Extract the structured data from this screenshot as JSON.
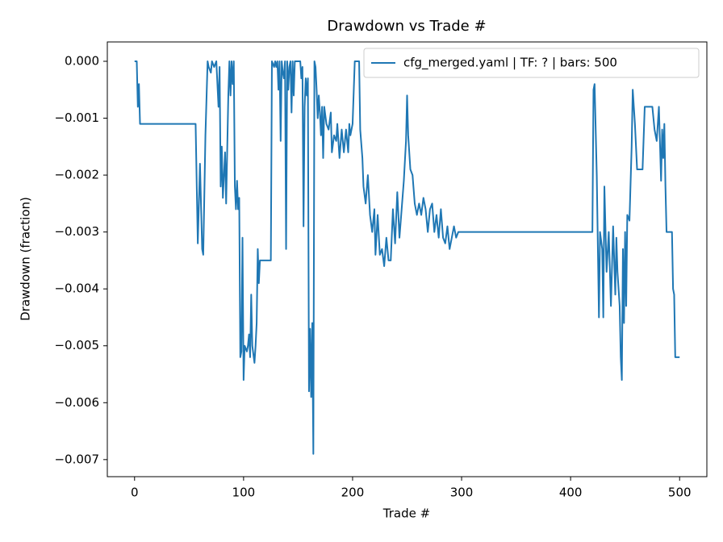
{
  "chart_data": {
    "type": "line",
    "title": "Drawdown vs Trade #",
    "x_label": "Trade #",
    "y_label": "Drawdown (fraction)",
    "x": [
      0,
      2,
      3,
      4,
      5,
      56,
      58,
      60,
      62,
      63,
      65,
      67,
      68,
      70,
      71,
      73,
      75,
      77,
      78,
      79,
      80,
      81,
      83,
      84,
      86,
      87,
      88,
      89,
      90,
      91,
      92,
      93,
      94,
      95,
      96,
      97,
      98,
      99,
      100,
      101,
      103,
      104,
      105,
      106,
      107,
      108,
      110,
      111,
      112,
      113,
      114,
      115,
      125,
      126,
      128,
      129,
      130,
      131,
      132,
      133,
      134,
      135,
      136,
      137,
      138,
      139,
      140,
      141,
      142,
      143,
      144,
      145,
      146,
      147,
      152,
      153,
      154,
      155,
      156,
      157,
      158,
      159,
      160,
      161,
      162,
      163,
      164,
      165,
      166,
      167,
      168,
      169,
      170,
      171,
      172,
      173,
      174,
      176,
      178,
      180,
      181,
      183,
      185,
      186,
      188,
      190,
      192,
      194,
      196,
      197,
      198,
      200,
      202,
      206,
      207,
      209,
      210,
      212,
      214,
      216,
      218,
      220,
      221,
      223,
      225,
      227,
      229,
      231,
      233,
      235,
      237,
      239,
      241,
      243,
      245,
      247,
      249,
      250,
      251,
      253,
      255,
      257,
      259,
      261,
      263,
      265,
      267,
      269,
      271,
      273,
      275,
      277,
      279,
      281,
      283,
      285,
      287,
      289,
      291,
      293,
      295,
      297,
      420,
      421,
      422,
      424,
      426,
      427,
      429,
      430,
      431,
      433,
      435,
      437,
      439,
      441,
      442,
      443,
      445,
      446,
      447,
      448,
      449,
      450,
      451,
      452,
      454,
      456,
      457,
      458,
      459,
      461,
      466,
      468,
      475,
      477,
      479,
      481,
      483,
      484,
      485,
      486,
      487,
      488,
      493,
      494,
      495,
      496,
      500
    ],
    "series": [
      {
        "name": "cfg_merged.yaml | TF: ? | bars: 500",
        "color": "#1f77b4",
        "values": [
          0,
          0,
          -0.0008,
          -0.0004,
          -0.0011,
          -0.0011,
          -0.0032,
          -0.0018,
          -0.0033,
          -0.0034,
          -0.0013,
          0,
          -0.0001,
          -0.0002,
          0,
          -0.0001,
          0,
          -0.0008,
          -0.0001,
          -0.0022,
          -0.0015,
          -0.0024,
          -0.0016,
          -0.0025,
          -0.0006,
          0,
          -0.0006,
          0,
          -0.0004,
          0,
          -0.0022,
          -0.0026,
          -0.0021,
          -0.0026,
          -0.0024,
          -0.0052,
          -0.0051,
          -0.0031,
          -0.0056,
          -0.005,
          -0.0051,
          -0.005,
          -0.0048,
          -0.0052,
          -0.0041,
          -0.005,
          -0.0053,
          -0.005,
          -0.0046,
          -0.0033,
          -0.0039,
          -0.0035,
          -0.0035,
          0,
          -0.0001,
          0,
          -0.0001,
          0,
          -0.0005,
          0,
          -0.0014,
          0,
          -0.0002,
          -0.0003,
          0,
          -0.0033,
          0,
          -0.0005,
          -0.0001,
          0,
          -0.0009,
          0,
          -0.0006,
          0,
          0,
          -0.0003,
          -0.0001,
          -0.0029,
          -0.0008,
          -0.0003,
          -0.0006,
          -0.0003,
          -0.0058,
          -0.0047,
          -0.0059,
          -0.0046,
          -0.0069,
          0,
          -0.0001,
          -0.0005,
          -0.001,
          -0.0006,
          -0.0009,
          -0.0013,
          -0.0008,
          -0.0017,
          -0.0008,
          -0.0011,
          -0.0012,
          -0.0009,
          -0.0016,
          -0.0013,
          -0.0014,
          -0.0011,
          -0.0017,
          -0.0012,
          -0.0016,
          -0.0012,
          -0.0016,
          -0.0011,
          -0.0013,
          -0.0011,
          0,
          0,
          -0.0012,
          -0.0017,
          -0.0022,
          -0.0025,
          -0.002,
          -0.0027,
          -0.003,
          -0.0026,
          -0.0034,
          -0.0027,
          -0.0034,
          -0.0033,
          -0.0036,
          -0.0031,
          -0.0035,
          -0.0035,
          -0.0026,
          -0.0032,
          -0.0023,
          -0.0031,
          -0.0026,
          -0.0021,
          -0.0014,
          -0.0006,
          -0.0013,
          -0.0019,
          -0.002,
          -0.0025,
          -0.0027,
          -0.0025,
          -0.0027,
          -0.0024,
          -0.0026,
          -0.003,
          -0.0026,
          -0.0025,
          -0.003,
          -0.0027,
          -0.0031,
          -0.0026,
          -0.0031,
          -0.0032,
          -0.0029,
          -0.0033,
          -0.0031,
          -0.0029,
          -0.0031,
          -0.003,
          -0.003,
          -0.0005,
          -0.0004,
          -0.002,
          -0.0045,
          -0.003,
          -0.0033,
          -0.0045,
          -0.0022,
          -0.0037,
          -0.003,
          -0.0043,
          -0.0029,
          -0.0041,
          -0.0031,
          -0.0037,
          -0.0043,
          -0.0052,
          -0.0056,
          -0.0033,
          -0.0046,
          -0.003,
          -0.0043,
          -0.0027,
          -0.0028,
          -0.0015,
          -0.0005,
          -0.0008,
          -0.0011,
          -0.0019,
          -0.0019,
          -0.0008,
          -0.0008,
          -0.0012,
          -0.0014,
          -0.0008,
          -0.0021,
          -0.0012,
          -0.0017,
          -0.0011,
          -0.0022,
          -0.003,
          -0.003,
          -0.004,
          -0.0041,
          -0.0052,
          -0.0052
        ]
      }
    ],
    "xlim": [
      -25,
      525
    ],
    "xticks": [
      0,
      100,
      200,
      300,
      400,
      500
    ],
    "ylim": [
      -0.0073,
      0.00034
    ],
    "yticks": [
      {
        "value": 0,
        "label": "0.000"
      },
      {
        "value": -0.001,
        "label": "−0.001"
      },
      {
        "value": -0.002,
        "label": "−0.002"
      },
      {
        "value": -0.003,
        "label": "−0.003"
      },
      {
        "value": -0.004,
        "label": "−0.004"
      },
      {
        "value": -0.005,
        "label": "−0.005"
      },
      {
        "value": -0.006,
        "label": "−0.006"
      },
      {
        "value": -0.007,
        "label": "−0.007"
      }
    ],
    "legend": "upper right",
    "grid": false
  }
}
